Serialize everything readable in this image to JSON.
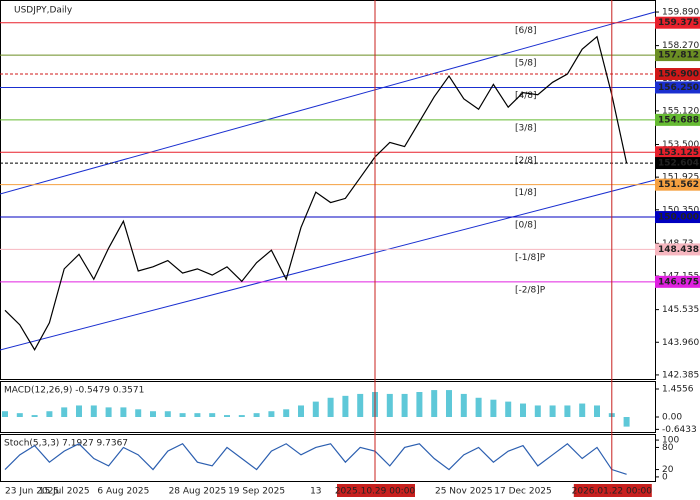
{
  "header": {
    "title": "USDJPY,Daily"
  },
  "chart_data": [
    {
      "type": "line",
      "categories": [
        "23 Jun 2025",
        null,
        null,
        null,
        "15 Jul 2025",
        null,
        null,
        null,
        "6 Aug 2025",
        null,
        null,
        null,
        null,
        "28 Aug 2025",
        null,
        null,
        null,
        "19 Sep 2025",
        null,
        null,
        null,
        "13",
        null,
        null,
        null,
        "2025.10.29 00:00",
        null,
        null,
        null,
        null,
        null,
        "25 Nov 2025",
        null,
        null,
        null,
        "17 Dec 2025",
        null,
        null,
        null,
        null,
        null,
        "2026.01.22 00:00",
        null
      ],
      "series": [
        {
          "color": "#000000",
          "values": [
            145.5,
            144.8,
            143.6,
            144.9,
            147.5,
            148.2,
            147.0,
            148.5,
            149.8,
            147.4,
            147.6,
            147.9,
            147.3,
            147.5,
            147.2,
            147.6,
            146.9,
            147.8,
            148.4,
            147.0,
            149.5,
            151.2,
            150.7,
            150.9,
            151.9,
            152.9,
            153.6,
            153.4,
            154.6,
            155.8,
            156.8,
            155.7,
            155.2,
            156.4,
            155.3,
            156.0,
            155.9,
            156.5,
            156.9,
            158.1,
            158.7,
            155.9,
            152.6
          ]
        }
      ],
      "ylim": [
        142.14,
        160.47
      ],
      "yticks": [
        {
          "value": 159.89,
          "label": "159.890"
        },
        {
          "value": 158.27,
          "label": "158.270"
        },
        156.695,
        {
          "value": 155.12,
          "label": "155.120"
        },
        {
          "value": 153.5,
          "label": "153.500"
        },
        151.925,
        {
          "value": 150.35,
          "label": "150.350"
        },
        148.73,
        147.155,
        145.535,
        {
          "value": 143.96,
          "label": "143.960"
        },
        142.385
      ],
      "highlight_color": "#c8201e",
      "levels": [
        {
          "value": 159.375,
          "label": "159.375",
          "name": "[6/8]",
          "color": "#e8202c"
        },
        {
          "value": 157.812,
          "label": "157.812",
          "name": "[5/8]",
          "color": "#6b8e23"
        },
        {
          "value": 156.9,
          "label": "156.900",
          "color": "#d01818"
        },
        {
          "value": 156.25,
          "label": "156.250",
          "name": "[4/8]",
          "color": "#1a2fd0"
        },
        {
          "value": 154.688,
          "label": "154.688",
          "name": "[3/8]",
          "color": "#66bb33"
        },
        {
          "value": 153.125,
          "label": "153.125",
          "name": "[2/8]",
          "color": "#e8202c"
        },
        {
          "value": 152.604,
          "label": "152.604",
          "color": "#000000"
        },
        {
          "value": 151.562,
          "label": "151.562",
          "name": "[1/8]",
          "color": "#f5a040"
        },
        {
          "value": 150.0,
          "label": "150.000",
          "name": "[0/8]",
          "color": "#0000c0"
        },
        {
          "value": 148.438,
          "label": "148.438",
          "name": "[-1/8]P",
          "color": "#f7b7c0"
        },
        {
          "value": 146.875,
          "label": "146.875",
          "name": "[-2/8]P",
          "color": "#e020e0"
        }
      ]
    },
    {
      "type": "bar",
      "title": "MACD(12,26,9) -0.5479 0.3571",
      "color": "#5ec8d8",
      "values": [
        0.3,
        0.2,
        0.1,
        0.3,
        0.5,
        0.6,
        0.6,
        0.5,
        0.5,
        0.4,
        0.3,
        0.3,
        0.2,
        0.2,
        0.2,
        0.1,
        0.1,
        0.2,
        0.3,
        0.4,
        0.6,
        0.8,
        1.0,
        1.1,
        1.2,
        1.3,
        1.2,
        1.2,
        1.3,
        1.4,
        1.4,
        1.2,
        1.0,
        0.9,
        0.8,
        0.7,
        0.6,
        0.6,
        0.6,
        0.7,
        0.6,
        0.2,
        -0.5
      ],
      "ylim": [
        -0.78,
        1.82
      ],
      "yticks": [
        1.4556,
        {
          "value": 0,
          "label": "0.00"
        },
        -0.6433
      ]
    },
    {
      "type": "line",
      "title": "Stoch(5,3,3) 7.1927 9.7367",
      "series": [
        {
          "color": "#2c5fb0",
          "values": [
            20,
            60,
            85,
            40,
            70,
            90,
            50,
            30,
            80,
            60,
            20,
            70,
            90,
            40,
            30,
            80,
            50,
            20,
            70,
            90,
            60,
            80,
            90,
            40,
            80,
            70,
            30,
            80,
            90,
            50,
            20,
            60,
            80,
            40,
            70,
            85,
            30,
            60,
            90,
            50,
            80,
            20,
            7
          ]
        }
      ],
      "ylim": [
        -13.8,
        113.8
      ],
      "yticks": [
        100,
        80,
        20,
        0
      ]
    }
  ]
}
